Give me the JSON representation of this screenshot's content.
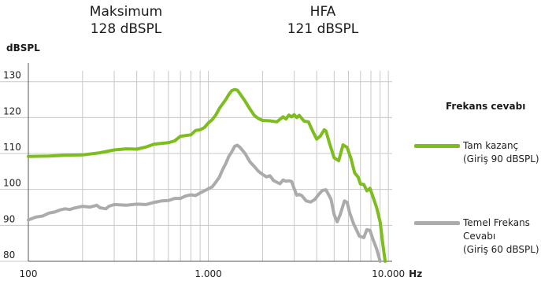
{
  "header": {
    "max_label": "Maksimum",
    "max_value": "128  dBSPL",
    "hfa_label": "HFA",
    "hfa_value": "121  dBSPL"
  },
  "colors": {
    "green": "#7dbd1e",
    "gray": "#ababab",
    "grid": "#c8c8c8",
    "axis": "#555555"
  },
  "chart_data": {
    "type": "line",
    "ylabel": "dBSPL",
    "xlabel": "Hz",
    "x_scale": "log",
    "xlim": [
      100,
      10500
    ],
    "ylim": [
      80,
      133
    ],
    "grid": true,
    "legend_position": "right",
    "legend_title": "Frekans cevabı",
    "x_ticks": [
      {
        "value": 100,
        "label": "100"
      },
      {
        "value": 1000,
        "label": "1.000"
      },
      {
        "value": 10000,
        "label": "10.000"
      }
    ],
    "y_ticks": [
      80,
      90,
      100,
      110,
      120,
      130
    ],
    "series": [
      {
        "name": "Tam kazanç",
        "name_line2": "(Giriş 90 dBSPL)",
        "color": "#7dbd1e",
        "points": [
          [
            100,
            109.2
          ],
          [
            130,
            109.3
          ],
          [
            160,
            109.5
          ],
          [
            200,
            109.6
          ],
          [
            250,
            110.2
          ],
          [
            300,
            111
          ],
          [
            350,
            111.3
          ],
          [
            400,
            111.2
          ],
          [
            450,
            111.8
          ],
          [
            500,
            112.6
          ],
          [
            600,
            113
          ],
          [
            650,
            113.5
          ],
          [
            700,
            114.8
          ],
          [
            800,
            115.2
          ],
          [
            850,
            116.4
          ],
          [
            900,
            116.6
          ],
          [
            950,
            117.2
          ],
          [
            1000,
            118.5
          ],
          [
            1050,
            119.4
          ],
          [
            1100,
            120.7
          ],
          [
            1150,
            122.5
          ],
          [
            1200,
            123.8
          ],
          [
            1250,
            125
          ],
          [
            1300,
            126.4
          ],
          [
            1350,
            127.5
          ],
          [
            1400,
            127.8
          ],
          [
            1450,
            127.6
          ],
          [
            1500,
            126.6
          ],
          [
            1600,
            124.6
          ],
          [
            1700,
            122.4
          ],
          [
            1800,
            120.6
          ],
          [
            1900,
            119.7
          ],
          [
            2000,
            119.2
          ],
          [
            2200,
            119.1
          ],
          [
            2400,
            118.8
          ],
          [
            2600,
            120.2
          ],
          [
            2700,
            119.6
          ],
          [
            2800,
            120.7
          ],
          [
            2900,
            120.2
          ],
          [
            3000,
            120.8
          ],
          [
            3100,
            120
          ],
          [
            3200,
            120.6
          ],
          [
            3400,
            119
          ],
          [
            3600,
            118.8
          ],
          [
            3800,
            116.2
          ],
          [
            4000,
            114
          ],
          [
            4200,
            114.9
          ],
          [
            4400,
            116.6
          ],
          [
            4500,
            116.3
          ],
          [
            4700,
            113
          ],
          [
            5000,
            108.8
          ],
          [
            5300,
            108
          ],
          [
            5600,
            112.4
          ],
          [
            5900,
            111.7
          ],
          [
            6200,
            108.6
          ],
          [
            6500,
            104.6
          ],
          [
            6800,
            103.4
          ],
          [
            7000,
            101.5
          ],
          [
            7300,
            101.4
          ],
          [
            7600,
            99.6
          ],
          [
            7900,
            100.3
          ],
          [
            8200,
            98
          ],
          [
            8600,
            95
          ],
          [
            9000,
            91
          ],
          [
            9300,
            85
          ],
          [
            9600,
            80
          ]
        ]
      },
      {
        "name": "Temel Frekans",
        "name_line2": "Cevabı",
        "name_line3": "(Giriş 60 dBSPL)",
        "color": "#ababab",
        "points": [
          [
            100,
            91.5
          ],
          [
            110,
            92.3
          ],
          [
            120,
            92.6
          ],
          [
            130,
            93.4
          ],
          [
            140,
            93.7
          ],
          [
            150,
            94.3
          ],
          [
            160,
            94.6
          ],
          [
            170,
            94.4
          ],
          [
            180,
            94.8
          ],
          [
            200,
            95.3
          ],
          [
            220,
            95.1
          ],
          [
            240,
            95.6
          ],
          [
            250,
            94.9
          ],
          [
            270,
            94.6
          ],
          [
            280,
            95.3
          ],
          [
            300,
            95.8
          ],
          [
            350,
            95.6
          ],
          [
            400,
            95.9
          ],
          [
            450,
            95.8
          ],
          [
            500,
            96.4
          ],
          [
            550,
            96.8
          ],
          [
            600,
            96.9
          ],
          [
            650,
            97.5
          ],
          [
            700,
            97.5
          ],
          [
            750,
            98.2
          ],
          [
            800,
            98.5
          ],
          [
            850,
            98.3
          ],
          [
            900,
            99
          ],
          [
            950,
            99.6
          ],
          [
            1000,
            100.2
          ],
          [
            1050,
            100.7
          ],
          [
            1100,
            102
          ],
          [
            1150,
            103.4
          ],
          [
            1200,
            105.5
          ],
          [
            1250,
            107.2
          ],
          [
            1300,
            109.2
          ],
          [
            1350,
            110.5
          ],
          [
            1400,
            112
          ],
          [
            1450,
            112.3
          ],
          [
            1500,
            111.7
          ],
          [
            1600,
            110
          ],
          [
            1700,
            107.7
          ],
          [
            1800,
            106.4
          ],
          [
            1900,
            105
          ],
          [
            2000,
            104.2
          ],
          [
            2100,
            103.5
          ],
          [
            2200,
            103.8
          ],
          [
            2300,
            102.5
          ],
          [
            2400,
            102
          ],
          [
            2500,
            101.6
          ],
          [
            2600,
            102.6
          ],
          [
            2700,
            102.3
          ],
          [
            2800,
            102.4
          ],
          [
            2900,
            102.2
          ],
          [
            3000,
            100.2
          ],
          [
            3100,
            98.4
          ],
          [
            3200,
            98.6
          ],
          [
            3300,
            98.3
          ],
          [
            3500,
            96.8
          ],
          [
            3700,
            96.5
          ],
          [
            3900,
            97.2
          ],
          [
            4100,
            98.6
          ],
          [
            4300,
            99.7
          ],
          [
            4500,
            99.9
          ],
          [
            4800,
            97.3
          ],
          [
            5000,
            93
          ],
          [
            5200,
            91
          ],
          [
            5400,
            93
          ],
          [
            5700,
            96.8
          ],
          [
            5900,
            96.4
          ],
          [
            6100,
            93.5
          ],
          [
            6400,
            90.5
          ],
          [
            6700,
            88.4
          ],
          [
            6900,
            87
          ],
          [
            7300,
            86.6
          ],
          [
            7600,
            88.8
          ],
          [
            7900,
            88.6
          ],
          [
            8200,
            86.2
          ],
          [
            8600,
            83.5
          ],
          [
            9000,
            80
          ]
        ]
      }
    ]
  }
}
